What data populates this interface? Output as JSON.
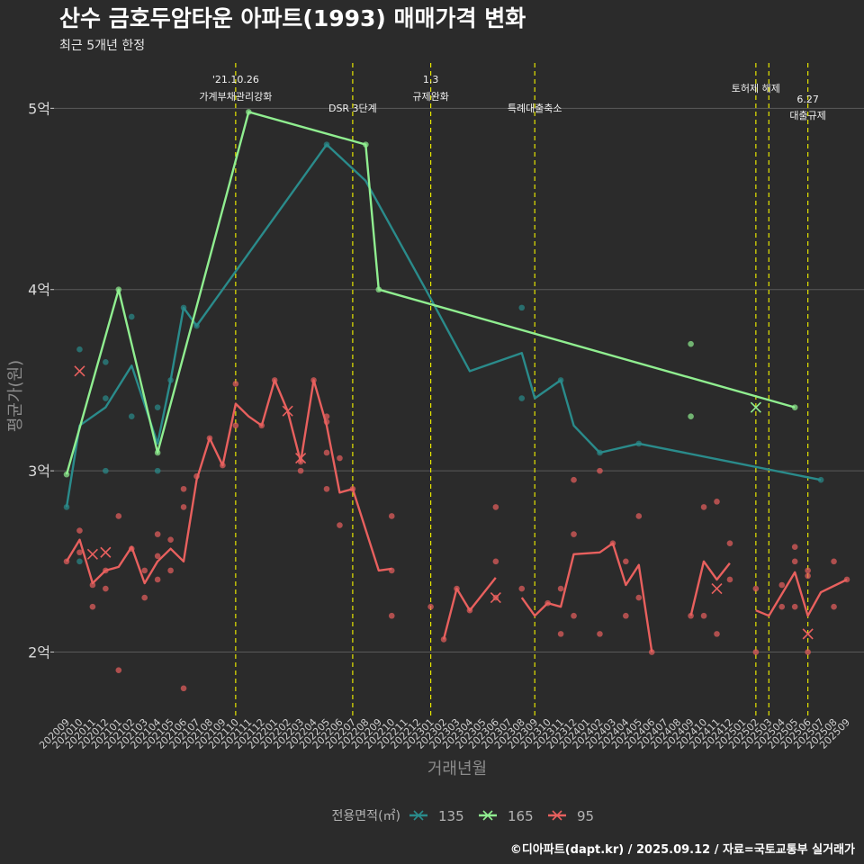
{
  "chart_data": {
    "type": "line",
    "title": "산수 금호두암타운 아파트(1993) 매매가격 변화",
    "subtitle": "최근 5개년 한정",
    "xlabel": "거래년월",
    "ylabel": "평균가(원)",
    "ylim": [
      1.65,
      5.25
    ],
    "grid": true,
    "legend_title": "전용면적(㎡)",
    "legend_position": "bottom",
    "caption": "©디아파트(dapt.kr) / 2025.09.12 / 자료=국토교통부 실거래가",
    "x": [
      "202009",
      "202010",
      "202011",
      "202012",
      "202101",
      "202102",
      "202103",
      "202104",
      "202105",
      "202106",
      "202107",
      "202108",
      "202109",
      "202110",
      "202111",
      "202112",
      "202201",
      "202202",
      "202203",
      "202204",
      "202205",
      "202206",
      "202207",
      "202208",
      "202209",
      "202210",
      "202211",
      "202212",
      "202301",
      "202302",
      "202303",
      "202304",
      "202305",
      "202306",
      "202307",
      "202308",
      "202309",
      "202310",
      "202311",
      "202312",
      "202401",
      "202402",
      "202403",
      "202404",
      "202405",
      "202406",
      "202407",
      "202408",
      "202409",
      "202410",
      "202411",
      "202412",
      "202501",
      "202502",
      "202503",
      "202504",
      "202505",
      "202506",
      "202507",
      "202508",
      "202509"
    ],
    "yticks": [
      {
        "value": 2,
        "label": "2억"
      },
      {
        "value": 3,
        "label": "3억"
      },
      {
        "value": 4,
        "label": "4억"
      },
      {
        "value": 5,
        "label": "5억"
      }
    ],
    "events": [
      {
        "x": "202110",
        "label1": "'21.10.26",
        "label2": "가계부채관리강화",
        "row": 0
      },
      {
        "x": "202207",
        "label1": "",
        "label2": "DSR 3단계",
        "row": 1
      },
      {
        "x": "202301",
        "label1": "1.3",
        "label2": "규제완화",
        "row": 0
      },
      {
        "x": "202309",
        "label1": "",
        "label2": "특례대출축소",
        "row": 1
      },
      {
        "x": "202502",
        "label1": "",
        "label2": "토허제 해제",
        "row": 0
      },
      {
        "x": "202503",
        "label1": "",
        "label2": "",
        "row": 0
      },
      {
        "x": "202506",
        "label1": "6.27",
        "label2": "대출규제",
        "row": 2
      }
    ],
    "series": [
      {
        "name": "135",
        "color": "#2a8b8b",
        "line": [
          [
            "202009",
            2.8
          ],
          [
            "202010",
            3.25
          ],
          [
            "202012",
            3.35
          ],
          [
            "202102",
            3.58
          ],
          [
            "202104",
            3.15
          ],
          [
            "202105",
            3.5
          ],
          [
            "202106",
            3.9
          ],
          [
            "202107",
            3.8
          ],
          [
            "202205",
            4.8
          ],
          [
            "202208",
            4.6
          ],
          [
            "202301",
            3.95
          ],
          [
            "202304",
            3.55
          ],
          [
            "202308",
            3.65
          ],
          [
            "202309",
            3.4
          ],
          [
            "202311",
            3.5
          ],
          [
            "202312",
            3.25
          ],
          [
            "202402",
            3.1
          ],
          [
            "202405",
            3.15
          ],
          [
            "202507",
            2.95
          ]
        ],
        "points": [
          [
            "202009",
            2.8
          ],
          [
            "202010",
            3.67
          ],
          [
            "202010",
            2.5
          ],
          [
            "202012",
            3.6
          ],
          [
            "202012",
            3.4
          ],
          [
            "202012",
            3.0
          ],
          [
            "202102",
            3.85
          ],
          [
            "202102",
            3.3
          ],
          [
            "202104",
            3.35
          ],
          [
            "202104",
            3.0
          ],
          [
            "202105",
            3.5
          ],
          [
            "202106",
            3.9
          ],
          [
            "202107",
            3.8
          ],
          [
            "202205",
            4.8
          ],
          [
            "202308",
            3.9
          ],
          [
            "202308",
            3.4
          ],
          [
            "202311",
            3.5
          ],
          [
            "202402",
            3.1
          ],
          [
            "202405",
            3.15
          ],
          [
            "202507",
            2.95
          ]
        ],
        "crosses": []
      },
      {
        "name": "165",
        "color": "#90ee90",
        "line": [
          [
            "202009",
            2.98
          ],
          [
            "202101",
            4.0
          ],
          [
            "202104",
            3.1
          ],
          [
            "202111",
            4.98
          ],
          [
            "202208",
            4.8
          ],
          [
            "202209",
            4.0
          ],
          [
            "202505",
            3.35
          ]
        ],
        "points": [
          [
            "202009",
            2.98
          ],
          [
            "202101",
            4.0
          ],
          [
            "202104",
            3.1
          ],
          [
            "202111",
            4.98
          ],
          [
            "202208",
            4.8
          ],
          [
            "202209",
            4.0
          ],
          [
            "202409",
            3.7
          ],
          [
            "202409",
            3.3
          ],
          [
            "202505",
            3.35
          ]
        ],
        "crosses": [
          [
            "202502",
            3.35
          ]
        ]
      },
      {
        "name": "95",
        "color": "#e8605e",
        "line": [
          [
            "202009",
            2.5
          ],
          [
            "202010",
            2.62
          ],
          [
            "202011",
            2.38
          ],
          [
            "202012",
            2.45
          ],
          [
            "202101",
            2.47
          ],
          [
            "202102",
            2.58
          ],
          [
            "202103",
            2.38
          ],
          [
            "202104",
            2.5
          ],
          [
            "202105",
            2.57
          ],
          [
            "202106",
            2.5
          ],
          [
            "202107",
            2.95
          ],
          [
            "202108",
            3.18
          ],
          [
            "202109",
            3.03
          ],
          [
            "202110",
            3.37
          ],
          [
            "202111",
            3.3
          ],
          [
            "202112",
            3.25
          ],
          [
            "202201",
            3.5
          ],
          [
            "202202",
            3.33
          ],
          [
            "202203",
            3.05
          ],
          [
            "202204",
            3.5
          ],
          [
            "202205",
            3.25
          ],
          [
            "202206",
            2.88
          ],
          [
            "202207",
            2.9
          ],
          [
            "202209",
            2.45
          ],
          [
            "202210",
            2.46
          ],
          [
            "null",
            null
          ],
          [
            "202302",
            2.07
          ],
          [
            "202303",
            2.35
          ],
          [
            "202304",
            2.23
          ],
          [
            "202306",
            2.41
          ],
          [
            "null",
            null
          ],
          [
            "202308",
            2.3
          ],
          [
            "202309",
            2.2
          ],
          [
            "202310",
            2.27
          ],
          [
            "202311",
            2.25
          ],
          [
            "202312",
            2.54
          ],
          [
            "202402",
            2.55
          ],
          [
            "202403",
            2.6
          ],
          [
            "202404",
            2.37
          ],
          [
            "202405",
            2.48
          ],
          [
            "202406",
            2.0
          ],
          [
            "null",
            null
          ],
          [
            "202409",
            2.2
          ],
          [
            "202410",
            2.5
          ],
          [
            "202411",
            2.4
          ],
          [
            "202412",
            2.49
          ],
          [
            "null",
            null
          ],
          [
            "202502",
            2.23
          ],
          [
            "202503",
            2.2
          ],
          [
            "202505",
            2.44
          ],
          [
            "202506",
            2.2
          ],
          [
            "202507",
            2.33
          ],
          [
            "202509",
            2.4
          ]
        ],
        "points": [
          [
            "202009",
            2.5
          ],
          [
            "202010",
            2.67
          ],
          [
            "202010",
            2.55
          ],
          [
            "202011",
            2.37
          ],
          [
            "202011",
            2.25
          ],
          [
            "202012",
            2.35
          ],
          [
            "202012",
            2.45
          ],
          [
            "202101",
            2.75
          ],
          [
            "202101",
            1.9
          ],
          [
            "202102",
            2.57
          ],
          [
            "202103",
            2.45
          ],
          [
            "202103",
            2.3
          ],
          [
            "202104",
            2.65
          ],
          [
            "202104",
            2.53
          ],
          [
            "202104",
            2.4
          ],
          [
            "202105",
            2.62
          ],
          [
            "202105",
            2.45
          ],
          [
            "202106",
            2.9
          ],
          [
            "202106",
            2.8
          ],
          [
            "202106",
            1.8
          ],
          [
            "202107",
            2.97
          ],
          [
            "202108",
            3.18
          ],
          [
            "202109",
            3.03
          ],
          [
            "202110",
            3.48
          ],
          [
            "202110",
            3.25
          ],
          [
            "202112",
            3.25
          ],
          [
            "202201",
            3.5
          ],
          [
            "202203",
            3.05
          ],
          [
            "202203",
            3.0
          ],
          [
            "202204",
            3.5
          ],
          [
            "202205",
            3.3
          ],
          [
            "202205",
            3.27
          ],
          [
            "202205",
            3.1
          ],
          [
            "202205",
            2.9
          ],
          [
            "202206",
            3.07
          ],
          [
            "202206",
            2.7
          ],
          [
            "202207",
            2.9
          ],
          [
            "202210",
            2.75
          ],
          [
            "202210",
            2.45
          ],
          [
            "202210",
            2.2
          ],
          [
            "202301",
            2.25
          ],
          [
            "202302",
            2.07
          ],
          [
            "202303",
            2.35
          ],
          [
            "202304",
            2.23
          ],
          [
            "202306",
            2.8
          ],
          [
            "202306",
            2.5
          ],
          [
            "202306",
            2.3
          ],
          [
            "202308",
            2.35
          ],
          [
            "202310",
            2.27
          ],
          [
            "202311",
            2.35
          ],
          [
            "202311",
            2.1
          ],
          [
            "202312",
            2.95
          ],
          [
            "202312",
            2.65
          ],
          [
            "202312",
            2.2
          ],
          [
            "202402",
            3.0
          ],
          [
            "202402",
            2.1
          ],
          [
            "202403",
            2.6
          ],
          [
            "202404",
            2.5
          ],
          [
            "202404",
            2.2
          ],
          [
            "202405",
            2.75
          ],
          [
            "202405",
            2.3
          ],
          [
            "202406",
            2.0
          ],
          [
            "202409",
            2.2
          ],
          [
            "202410",
            2.8
          ],
          [
            "202410",
            2.2
          ],
          [
            "202411",
            2.83
          ],
          [
            "202411",
            2.1
          ],
          [
            "202412",
            2.6
          ],
          [
            "202412",
            2.4
          ],
          [
            "202502",
            2.35
          ],
          [
            "202502",
            2.0
          ],
          [
            "202504",
            2.37
          ],
          [
            "202504",
            2.25
          ],
          [
            "202505",
            2.58
          ],
          [
            "202505",
            2.5
          ],
          [
            "202505",
            2.25
          ],
          [
            "202506",
            2.45
          ],
          [
            "202506",
            2.42
          ],
          [
            "202506",
            2.0
          ],
          [
            "202508",
            2.5
          ],
          [
            "202508",
            2.25
          ],
          [
            "202509",
            2.4
          ]
        ],
        "crosses": [
          [
            "202010",
            3.55
          ],
          [
            "202011",
            2.54
          ],
          [
            "202012",
            2.55
          ],
          [
            "202202",
            3.33
          ],
          [
            "202203",
            3.07
          ],
          [
            "202306",
            2.3
          ],
          [
            "202411",
            2.35
          ],
          [
            "202506",
            2.1
          ]
        ]
      }
    ]
  }
}
